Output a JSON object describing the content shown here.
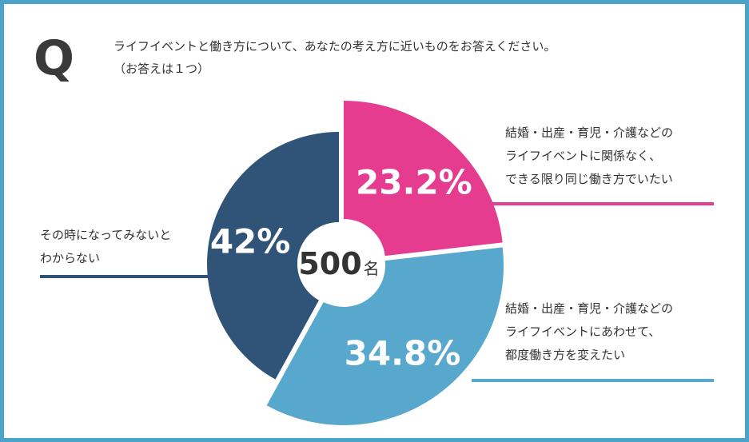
{
  "question": {
    "mark": "Q",
    "line1": "ライフイベントと働き方について、あなたの考え方に近いものをお答えください。",
    "line2": "（お答えは１つ）"
  },
  "center": {
    "count": "500",
    "unit": "名"
  },
  "colors": {
    "border": "#4aa3c8",
    "pink": "#e63c8f",
    "light_blue": "#58a7cc",
    "navy": "#2f5478"
  },
  "chart_data": {
    "type": "pie",
    "total_respondents": 500,
    "slices": [
      {
        "value": 23.2,
        "label_text": "23.2%",
        "color": "#e63c8f",
        "description": [
          "結婚・出産・育児・介護などの",
          "ライフイベントに関係なく、",
          "できる限り同じ働き方でいたい"
        ]
      },
      {
        "value": 34.8,
        "label_text": "34.8%",
        "color": "#58a7cc",
        "description": [
          "結婚・出産・育児・介護などの",
          "ライフイベントにあわせて、",
          "都度働き方を変えたい"
        ]
      },
      {
        "value": 42,
        "label_text": "42%",
        "color": "#2f5478",
        "description": [
          "その時になってみないと",
          "わからない"
        ]
      }
    ]
  }
}
